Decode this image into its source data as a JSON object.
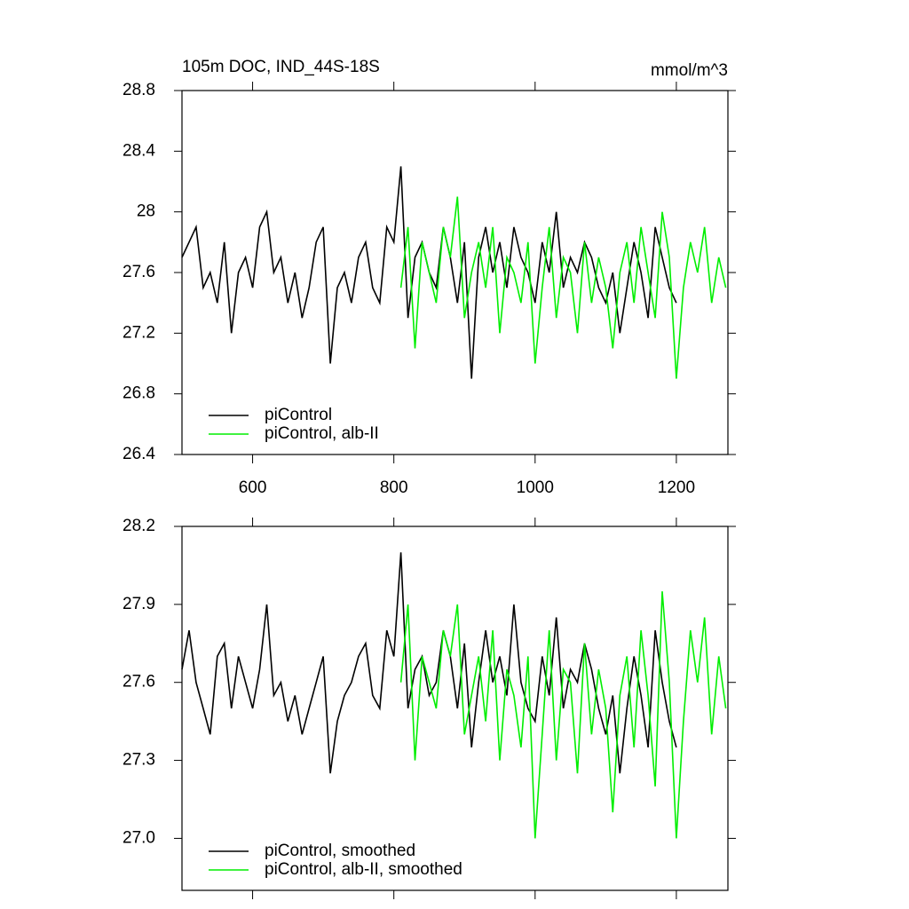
{
  "chart_data": [
    {
      "type": "line",
      "title": "105m DOC, IND_44S-18S",
      "units": "mmol/m^3",
      "xlim": [
        500,
        1273
      ],
      "xticks": [
        600,
        800,
        1000,
        1200
      ],
      "ylim": [
        26.4,
        28.8
      ],
      "yticks": [
        26.4,
        26.8,
        27.2,
        27.6,
        28.0,
        28.4,
        28.8
      ],
      "show_xtick_labels": true,
      "series": [
        {
          "name": "piControl",
          "color": "#000000",
          "x": [
            500,
            510,
            520,
            530,
            540,
            550,
            560,
            570,
            580,
            590,
            600,
            610,
            620,
            630,
            640,
            650,
            660,
            670,
            680,
            690,
            700,
            710,
            720,
            730,
            740,
            750,
            760,
            770,
            780,
            790,
            800,
            810,
            820,
            830,
            840,
            850,
            860,
            870,
            880,
            890,
            900,
            910,
            920,
            930,
            940,
            950,
            960,
            970,
            980,
            990,
            1000,
            1010,
            1020,
            1030,
            1040,
            1050,
            1060,
            1070,
            1080,
            1090,
            1100,
            1110,
            1120,
            1130,
            1140,
            1150,
            1160,
            1170,
            1180,
            1190,
            1200
          ],
          "values": [
            27.7,
            27.8,
            27.9,
            27.5,
            27.6,
            27.4,
            27.8,
            27.2,
            27.6,
            27.7,
            27.5,
            27.9,
            28.0,
            27.6,
            27.7,
            27.4,
            27.6,
            27.3,
            27.5,
            27.8,
            27.9,
            27.0,
            27.5,
            27.6,
            27.4,
            27.7,
            27.8,
            27.5,
            27.4,
            27.9,
            27.8,
            28.3,
            27.3,
            27.7,
            27.8,
            27.6,
            27.5,
            27.9,
            27.7,
            27.4,
            27.8,
            26.9,
            27.7,
            27.9,
            27.6,
            27.8,
            27.5,
            27.9,
            27.7,
            27.6,
            27.4,
            27.8,
            27.6,
            28.0,
            27.5,
            27.7,
            27.6,
            27.8,
            27.7,
            27.5,
            27.4,
            27.6,
            27.2,
            27.5,
            27.8,
            27.6,
            27.3,
            27.9,
            27.7,
            27.5,
            27.4
          ]
        },
        {
          "name": "piControl, alb-II",
          "color": "#00ee00",
          "x": [
            810,
            820,
            830,
            840,
            850,
            860,
            870,
            880,
            890,
            900,
            910,
            920,
            930,
            940,
            950,
            960,
            970,
            980,
            990,
            1000,
            1010,
            1020,
            1030,
            1040,
            1050,
            1060,
            1070,
            1080,
            1090,
            1100,
            1110,
            1120,
            1130,
            1140,
            1150,
            1160,
            1170,
            1180,
            1190,
            1200,
            1210,
            1220,
            1230,
            1240,
            1250,
            1260,
            1270
          ],
          "values": [
            27.5,
            27.9,
            27.1,
            27.8,
            27.6,
            27.4,
            27.9,
            27.7,
            28.1,
            27.3,
            27.6,
            27.8,
            27.5,
            27.9,
            27.2,
            27.7,
            27.6,
            27.4,
            27.8,
            27.0,
            27.5,
            27.9,
            27.3,
            27.7,
            27.6,
            27.2,
            27.8,
            27.4,
            27.7,
            27.5,
            27.1,
            27.6,
            27.8,
            27.4,
            27.9,
            27.6,
            27.3,
            28.0,
            27.7,
            26.9,
            27.5,
            27.8,
            27.6,
            27.9,
            27.4,
            27.7,
            27.5
          ]
        }
      ]
    },
    {
      "type": "line",
      "xlim": [
        500,
        1273
      ],
      "xticks": [
        600,
        800,
        1000,
        1200
      ],
      "ylim": [
        26.8,
        28.2
      ],
      "yticks": [
        {
          "value": 27.0,
          "label": "27.0"
        },
        27.3,
        27.6,
        27.9,
        28.2
      ],
      "show_xtick_labels": false,
      "series": [
        {
          "name": "piControl, smoothed",
          "color": "#000000",
          "x": [
            500,
            510,
            520,
            530,
            540,
            550,
            560,
            570,
            580,
            590,
            600,
            610,
            620,
            630,
            640,
            650,
            660,
            670,
            680,
            690,
            700,
            710,
            720,
            730,
            740,
            750,
            760,
            770,
            780,
            790,
            800,
            810,
            820,
            830,
            840,
            850,
            860,
            870,
            880,
            890,
            900,
            910,
            920,
            930,
            940,
            950,
            960,
            970,
            980,
            990,
            1000,
            1010,
            1020,
            1030,
            1040,
            1050,
            1060,
            1070,
            1080,
            1090,
            1100,
            1110,
            1120,
            1130,
            1140,
            1150,
            1160,
            1170,
            1180,
            1190,
            1200
          ],
          "values": [
            27.65,
            27.8,
            27.6,
            27.5,
            27.4,
            27.7,
            27.75,
            27.5,
            27.7,
            27.6,
            27.5,
            27.65,
            27.9,
            27.55,
            27.6,
            27.45,
            27.55,
            27.4,
            27.5,
            27.6,
            27.7,
            27.25,
            27.45,
            27.55,
            27.6,
            27.7,
            27.75,
            27.55,
            27.5,
            27.8,
            27.7,
            28.1,
            27.5,
            27.65,
            27.7,
            27.55,
            27.6,
            27.8,
            27.7,
            27.5,
            27.75,
            27.35,
            27.6,
            27.8,
            27.6,
            27.7,
            27.55,
            27.9,
            27.6,
            27.5,
            27.45,
            27.7,
            27.55,
            27.85,
            27.5,
            27.65,
            27.6,
            27.75,
            27.65,
            27.5,
            27.4,
            27.55,
            27.25,
            27.5,
            27.7,
            27.55,
            27.35,
            27.8,
            27.6,
            27.45,
            27.35
          ]
        },
        {
          "name": "piControl, alb-II, smoothed",
          "color": "#00ee00",
          "x": [
            810,
            820,
            830,
            840,
            850,
            860,
            870,
            880,
            890,
            900,
            910,
            920,
            930,
            940,
            950,
            960,
            970,
            980,
            990,
            1000,
            1010,
            1020,
            1030,
            1040,
            1050,
            1060,
            1070,
            1080,
            1090,
            1100,
            1110,
            1120,
            1130,
            1140,
            1150,
            1160,
            1170,
            1180,
            1190,
            1200,
            1210,
            1220,
            1230,
            1240,
            1250,
            1260,
            1270
          ],
          "values": [
            27.6,
            27.9,
            27.3,
            27.7,
            27.6,
            27.5,
            27.8,
            27.7,
            27.9,
            27.4,
            27.55,
            27.7,
            27.45,
            27.8,
            27.3,
            27.65,
            27.55,
            27.35,
            27.7,
            27.0,
            27.4,
            27.8,
            27.3,
            27.65,
            27.6,
            27.25,
            27.75,
            27.4,
            27.65,
            27.5,
            27.1,
            27.55,
            27.7,
            27.35,
            27.8,
            27.55,
            27.2,
            27.95,
            27.6,
            27.0,
            27.45,
            27.8,
            27.6,
            27.85,
            27.4,
            27.7,
            27.5
          ]
        }
      ]
    }
  ]
}
